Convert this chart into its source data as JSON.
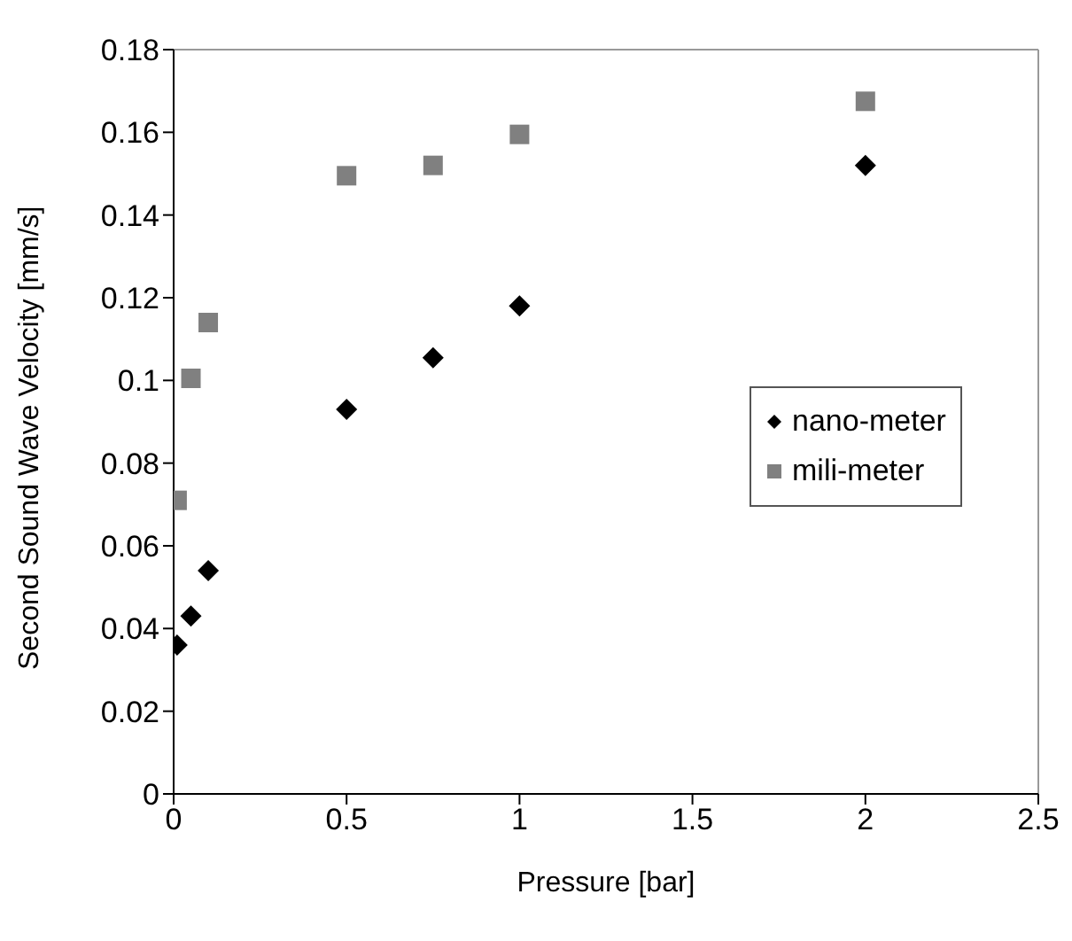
{
  "chart_data": {
    "type": "scatter",
    "xlabel": "Pressure [bar]",
    "ylabel": "Second Sound Wave Velocity [mm/s]",
    "x": [
      0.01,
      0.05,
      0.1,
      0.5,
      0.75,
      1,
      2
    ],
    "series": [
      {
        "name": "nano-meter",
        "color": "#000000",
        "marker": "diamond",
        "values": [
          0.036,
          0.043,
          0.054,
          0.093,
          0.1055,
          0.118,
          0.152
        ]
      },
      {
        "name": "mili-meter",
        "color": "#808080",
        "marker": "square",
        "values": [
          0.071,
          0.1005,
          0.114,
          0.1495,
          0.152,
          0.1595,
          0.1675
        ]
      }
    ],
    "xlim": [
      0,
      2.5
    ],
    "xticks": [
      0,
      0.5,
      1,
      1.5,
      2,
      2.5
    ],
    "ylim": [
      0,
      0.18
    ],
    "yticks": [
      0,
      0.02,
      0.04,
      0.06,
      0.08,
      0.1,
      0.12,
      0.14,
      0.16,
      0.18
    ],
    "grid": false,
    "legend": "right"
  }
}
